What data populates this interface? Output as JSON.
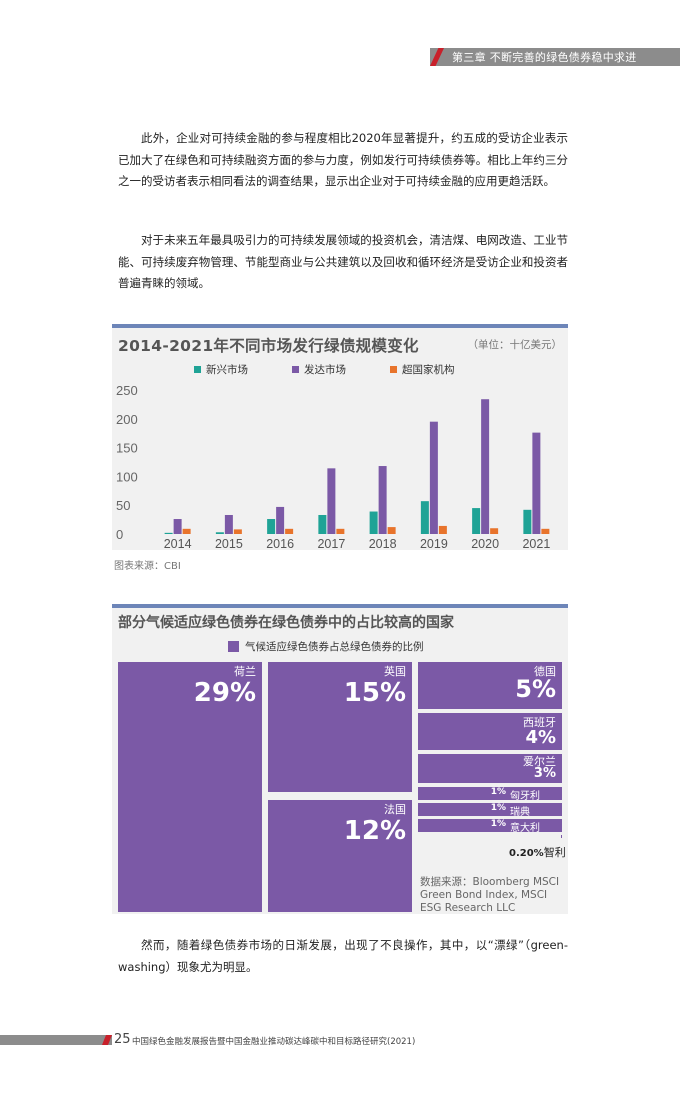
{
  "header": {
    "chapter": "第三章  不断完善的绿色债券稳中求进"
  },
  "paragraphs": {
    "p1": "此外，企业对可持续金融的参与程度相比2020年显著提升，约五成的受访企业表示已加大了在绿色和可持续融资方面的参与力度，例如发行可持续债券等。相比上年约三分之一的受访者表示相同看法的调查结果，显示出企业对于可持续金融的应用更趋活跃。",
    "p2": "对于未来五年最具吸引力的可持续发展领域的投资机会，清洁煤、电网改造、工业节能、可持续废弃物管理、节能型商业与公共建筑以及回收和循环经济是受访企业和投资者普遍青睐的领域。",
    "p3": "然而，随着绿色债券市场的日渐发展，出现了不良操作，其中，以“漂绿”（green-washing）现象尤为明显。"
  },
  "chart_data": [
    {
      "type": "bar",
      "title": "2014-2021年不同市场发行绿债规模变化",
      "unit": "（单位：十亿美元）",
      "categories": [
        "2014",
        "2015",
        "2016",
        "2017",
        "2018",
        "2019",
        "2020",
        "2021"
      ],
      "series": [
        {
          "name": "新兴市场",
          "color": "#1fa396",
          "values": [
            2,
            3,
            26,
            33,
            39,
            57,
            45,
            42
          ]
        },
        {
          "name": "发达市场",
          "color": "#7b59a6",
          "values": [
            26,
            33,
            47,
            114,
            118,
            195,
            234,
            176
          ]
        },
        {
          "name": "超国家机构",
          "color": "#e8742c",
          "values": [
            9,
            8,
            9,
            9,
            12,
            14,
            10,
            9
          ]
        }
      ],
      "yticks": [
        "250",
        "200",
        "150",
        "100",
        "50",
        "0"
      ],
      "ylim": [
        0,
        250
      ],
      "source": "图表来源：CBI"
    },
    {
      "type": "treemap",
      "title": "部分气候适应绿色债券在绿色债券中的占比较高的国家",
      "legend": "气候适应绿色债券占总绿色债券的比例",
      "color": "#7b59a6",
      "items": [
        {
          "name": "荷兰",
          "value": "29%"
        },
        {
          "name": "英国",
          "value": "15%"
        },
        {
          "name": "法国",
          "value": "12%"
        },
        {
          "name": "德国",
          "value": "5%"
        },
        {
          "name": "西班牙",
          "value": "4%"
        },
        {
          "name": "爱尔兰",
          "value": "3%"
        },
        {
          "name": "匈牙利",
          "value": "1%"
        },
        {
          "name": "瑞典",
          "value": "1%"
        },
        {
          "name": "意大利",
          "value": "1%"
        },
        {
          "name": "智利",
          "value": "0.20%"
        }
      ],
      "source": "数据来源：Bloomberg MSCI Green Bond Index, MSCI ESG Research LLC"
    }
  ],
  "footer": {
    "page": "25",
    "title": "中国绿色金融发展报告暨中国金融业推动碳达峰碳中和目标路径研究(2021)"
  }
}
